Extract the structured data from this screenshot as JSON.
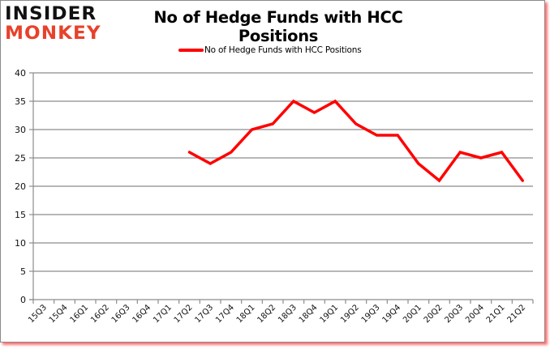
{
  "logo": {
    "line1": "INSIDER",
    "line2": "MONKEY"
  },
  "colors": {
    "series": "#ff0000",
    "grid": "#8c8c8c",
    "logo_red": "#e8412b",
    "shadow": "#ff0000"
  },
  "chart_data": {
    "type": "line",
    "title": "No of Hedge Funds with HCC Positions",
    "xlabel": "",
    "ylabel": "",
    "ylim": [
      0,
      40
    ],
    "yticks": [
      0,
      5,
      10,
      15,
      20,
      25,
      30,
      35,
      40
    ],
    "grid": true,
    "legend_position": "top",
    "categories": [
      "15Q3",
      "15Q4",
      "16Q1",
      "16Q2",
      "16Q3",
      "16Q4",
      "17Q1",
      "17Q2",
      "17Q3",
      "17Q4",
      "18Q1",
      "18Q2",
      "18Q3",
      "18Q4",
      "19Q1",
      "19Q2",
      "19Q3",
      "19Q4",
      "20Q1",
      "20Q2",
      "20Q3",
      "20Q4",
      "21Q1",
      "21Q2"
    ],
    "series": [
      {
        "name": "No of Hedge Funds with HCC Positions",
        "color": "#ff0000",
        "values": [
          null,
          null,
          null,
          null,
          null,
          null,
          null,
          26,
          24,
          26,
          30,
          31,
          35,
          33,
          35,
          31,
          29,
          29,
          24,
          21,
          26,
          25,
          26,
          21
        ]
      }
    ]
  }
}
